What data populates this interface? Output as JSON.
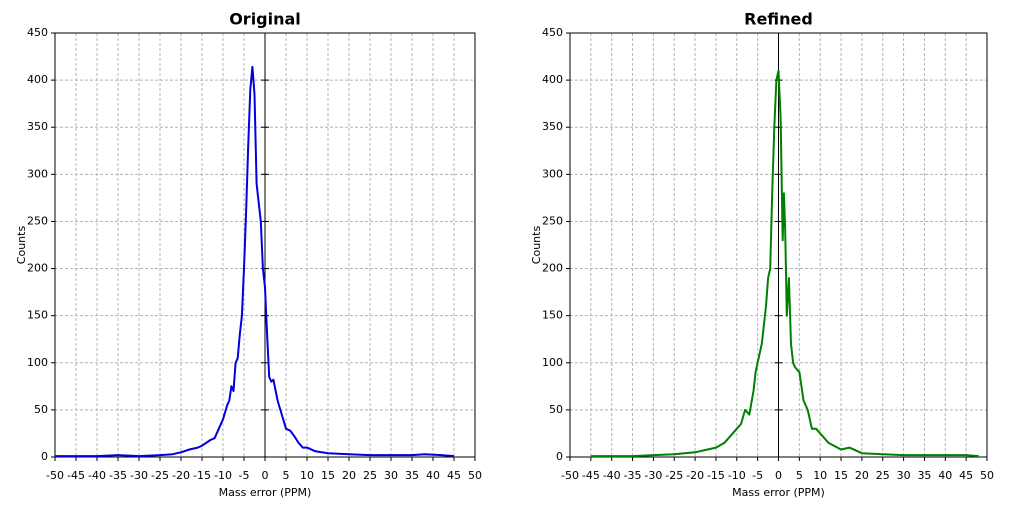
{
  "chart_data": [
    {
      "type": "line",
      "title": "Original",
      "x_label": "Mass error (PPM)",
      "y_label": "Counts",
      "color": "#0000e0",
      "x": [
        -50,
        -45,
        -40,
        -35,
        -30,
        -25,
        -22,
        -20,
        -18,
        -16,
        -15,
        -13,
        -12,
        -11,
        -10,
        -9,
        -8.5,
        -8,
        -7.5,
        -7,
        -6.5,
        -6,
        -5.5,
        -5,
        -4.5,
        -4,
        -3.5,
        -3,
        -2.5,
        -2,
        -1.5,
        -1,
        -0.5,
        0,
        0.5,
        1,
        1.5,
        2,
        3,
        4,
        5,
        6,
        7,
        8,
        9,
        10,
        12,
        15,
        20,
        25,
        30,
        35,
        38,
        42,
        45
      ],
      "values": [
        1,
        1,
        1,
        2,
        1,
        2,
        3,
        5,
        8,
        10,
        12,
        18,
        20,
        30,
        40,
        55,
        60,
        75,
        70,
        100,
        105,
        130,
        150,
        200,
        260,
        330,
        390,
        414,
        385,
        290,
        270,
        250,
        200,
        180,
        130,
        85,
        80,
        82,
        60,
        45,
        30,
        28,
        22,
        15,
        10,
        10,
        6,
        4,
        3,
        2,
        2,
        2,
        3,
        2,
        1
      ],
      "xlim": [
        -50,
        50
      ],
      "ylim": [
        0,
        450
      ],
      "xticks": [
        -50,
        -45,
        -40,
        -35,
        -30,
        -25,
        -20,
        -15,
        -10,
        -5,
        0,
        5,
        10,
        15,
        20,
        25,
        30,
        35,
        40,
        45,
        50
      ],
      "yticks": [
        0,
        50,
        100,
        150,
        200,
        250,
        300,
        350,
        400,
        450
      ],
      "grid": true
    },
    {
      "type": "line",
      "title": "Refined",
      "x_label": "Mass error (PPM)",
      "y_label": "Counts",
      "color": "#008000",
      "x": [
        -45,
        -40,
        -35,
        -30,
        -25,
        -20,
        -17,
        -15,
        -13,
        -12,
        -10,
        -9,
        -8,
        -7,
        -6,
        -5.5,
        -5,
        -4,
        -3,
        -2.5,
        -2,
        -1.5,
        -1,
        -0.5,
        0,
        0.5,
        1,
        1.3,
        1.6,
        2,
        2.5,
        3,
        3.5,
        4,
        5,
        6,
        7,
        8,
        9,
        10,
        12,
        15,
        17,
        20,
        25,
        30,
        40,
        45,
        48
      ],
      "values": [
        1,
        1,
        1,
        2,
        3,
        5,
        8,
        10,
        15,
        20,
        30,
        35,
        50,
        45,
        70,
        90,
        100,
        120,
        160,
        190,
        200,
        280,
        350,
        400,
        410,
        360,
        230,
        280,
        240,
        150,
        190,
        120,
        100,
        95,
        90,
        60,
        50,
        30,
        30,
        25,
        15,
        8,
        10,
        4,
        3,
        2,
        2,
        2,
        1
      ],
      "xlim": [
        -50,
        50
      ],
      "ylim": [
        0,
        450
      ],
      "xticks": [
        -50,
        -45,
        -40,
        -35,
        -30,
        -25,
        -20,
        -15,
        -10,
        -5,
        0,
        5,
        10,
        15,
        20,
        25,
        30,
        35,
        40,
        45,
        50
      ],
      "yticks": [
        0,
        50,
        100,
        150,
        200,
        250,
        300,
        350,
        400,
        450
      ],
      "grid": true
    }
  ]
}
